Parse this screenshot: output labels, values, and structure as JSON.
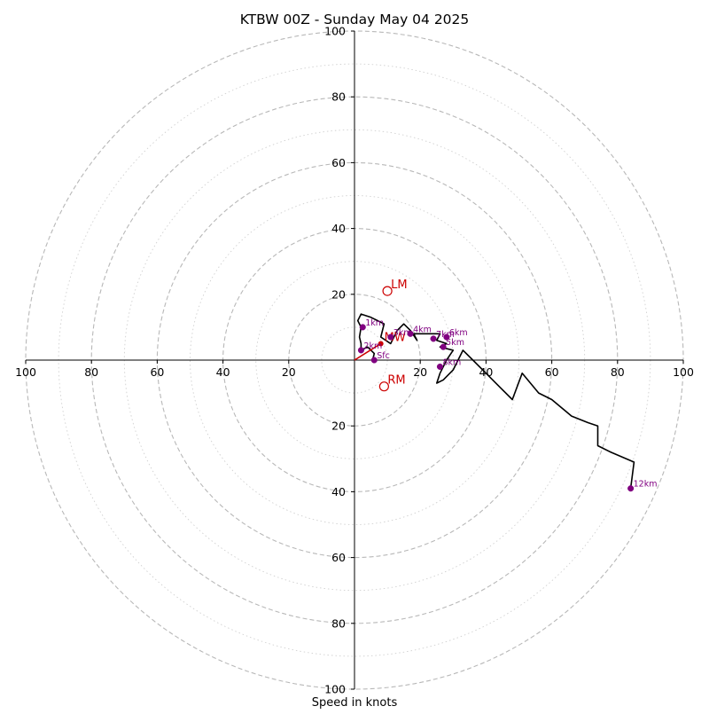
{
  "chart_data": {
    "type": "hodograph",
    "title": "KTBW 00Z - Sunday May 04 2025",
    "xlabel": "Speed in knots",
    "units": "knots",
    "max_speed": 100,
    "ring_step_major": 20,
    "ring_step_minor": 10,
    "grid": true,
    "x_tick_labels": [
      "100",
      "80",
      "60",
      "40",
      "20",
      "20",
      "40",
      "60",
      "80",
      "100"
    ],
    "x_tick_values": [
      -100,
      -80,
      -60,
      -40,
      -20,
      20,
      40,
      60,
      80,
      100
    ],
    "y_tick_labels": [
      "100",
      "80",
      "60",
      "40",
      "20",
      "20",
      "40",
      "60",
      "80",
      "100"
    ],
    "y_tick_values": [
      100,
      80,
      60,
      40,
      20,
      -20,
      -40,
      -60,
      -80,
      -100
    ],
    "trace": {
      "color": "#000000",
      "points": [
        [
          5.5,
          0
        ],
        [
          6,
          2
        ],
        [
          4,
          4
        ],
        [
          2,
          3
        ],
        [
          2,
          5
        ],
        [
          1.5,
          7
        ],
        [
          2,
          10
        ],
        [
          1,
          12
        ],
        [
          2,
          14
        ],
        [
          5,
          13
        ],
        [
          7,
          12
        ],
        [
          9,
          11
        ],
        [
          8,
          7
        ],
        [
          11,
          5
        ],
        [
          13,
          9
        ],
        [
          15,
          11
        ],
        [
          17,
          9
        ],
        [
          19,
          6
        ],
        [
          18,
          8
        ],
        [
          20,
          8
        ],
        [
          23,
          8
        ],
        [
          26,
          8
        ],
        [
          25,
          6
        ],
        [
          28,
          5
        ],
        [
          26,
          4
        ],
        [
          30,
          3
        ],
        [
          28,
          0
        ],
        [
          26,
          -4
        ],
        [
          25,
          -7
        ],
        [
          27,
          -6
        ],
        [
          30,
          -3
        ],
        [
          33,
          3
        ],
        [
          36,
          0
        ],
        [
          40,
          -4
        ],
        [
          44,
          -8
        ],
        [
          48,
          -12
        ],
        [
          51,
          -4
        ],
        [
          56,
          -10
        ],
        [
          60,
          -12
        ],
        [
          66,
          -17
        ],
        [
          71,
          -19
        ],
        [
          74,
          -20
        ],
        [
          74,
          -26
        ],
        [
          78,
          -28
        ],
        [
          85,
          -31
        ],
        [
          84,
          -39
        ]
      ]
    },
    "height_markers": {
      "color": "#800080",
      "points": [
        {
          "label": "Sfc",
          "u": 6,
          "v": 0
        },
        {
          "label": "1km",
          "u": 2.5,
          "v": 10
        },
        {
          "label": "2km",
          "u": 2,
          "v": 3
        },
        {
          "label": "3km",
          "u": 11,
          "v": 7
        },
        {
          "label": "4km",
          "u": 17,
          "v": 8
        },
        {
          "label": "5km",
          "u": 27,
          "v": 4
        },
        {
          "label": "6km",
          "u": 28,
          "v": 7
        },
        {
          "label": "7km",
          "u": 24,
          "v": 6.5
        },
        {
          "label": "8km",
          "u": 26,
          "v": -2
        },
        {
          "label": "12km",
          "u": 84,
          "v": -39
        }
      ]
    },
    "storm_motion": {
      "color": "#cc0000",
      "points": [
        {
          "label": "LM",
          "u": 10,
          "v": 21
        },
        {
          "label": "MW",
          "u": 8,
          "v": 5
        },
        {
          "label": "RM",
          "u": 9,
          "v": -8
        }
      ],
      "vector_from": [
        0,
        0
      ],
      "vector_to": [
        8,
        5
      ]
    }
  }
}
